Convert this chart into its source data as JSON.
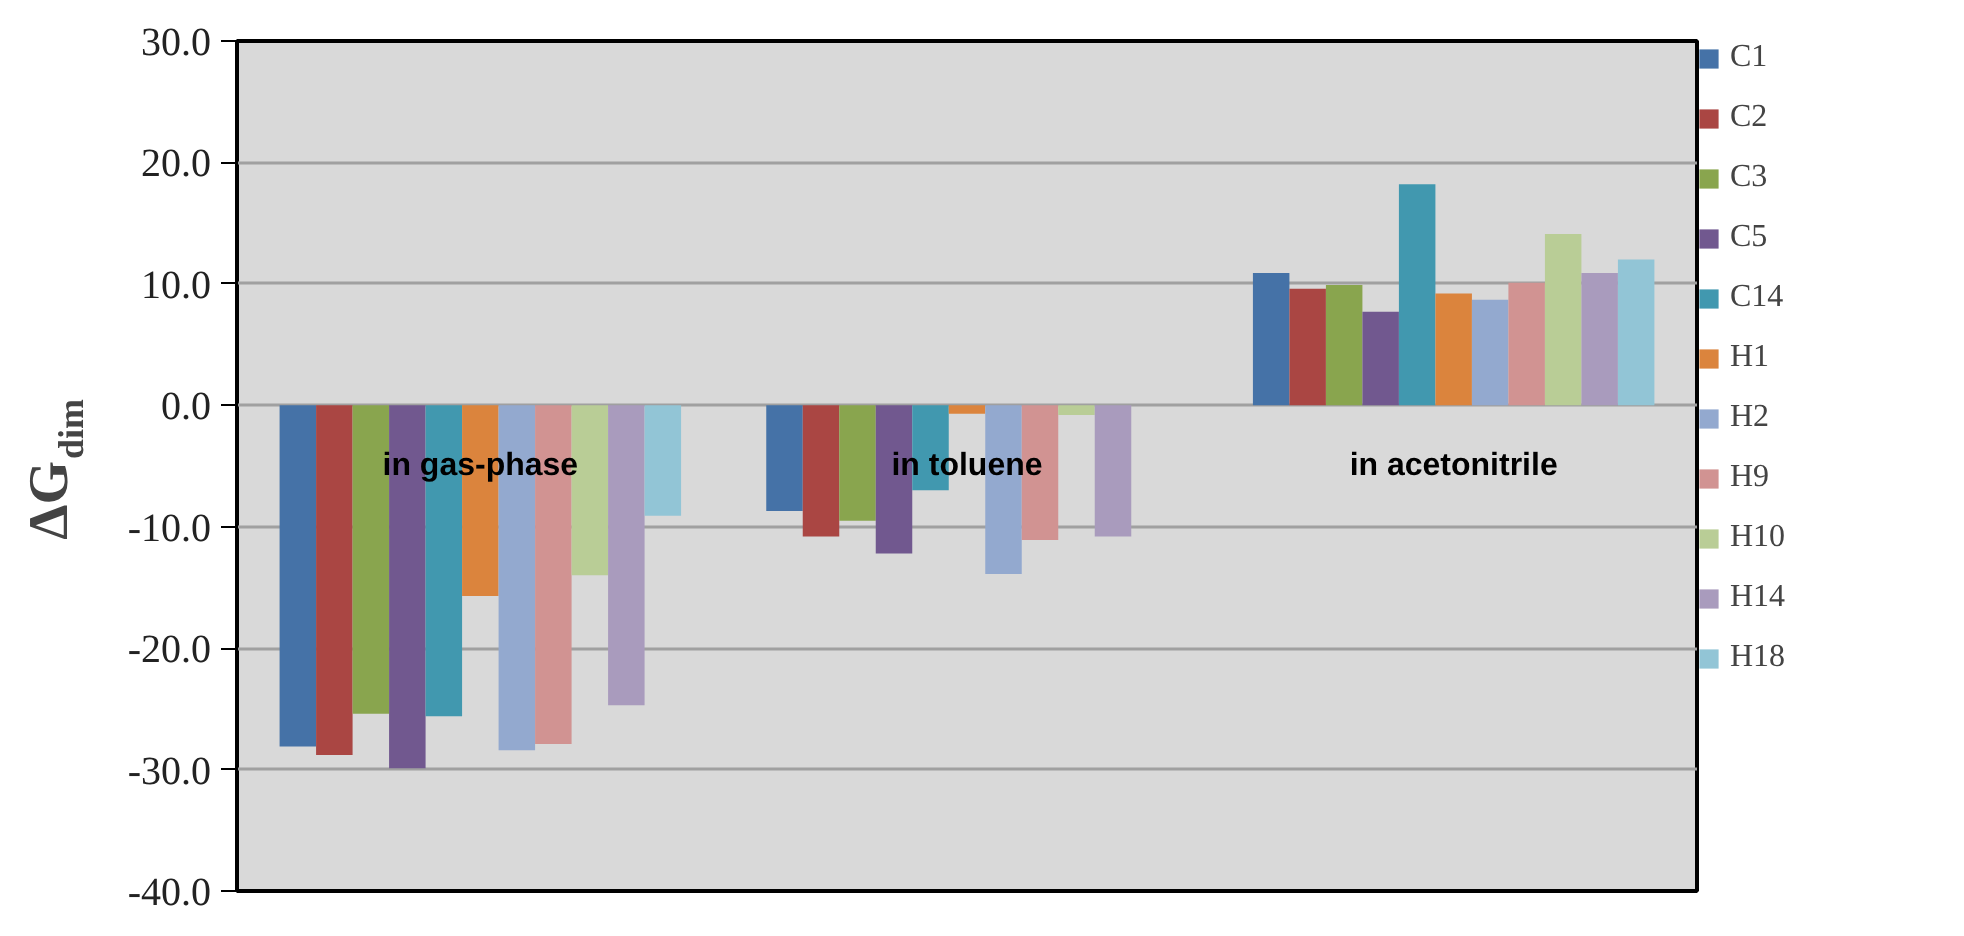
{
  "chart_data": {
    "type": "bar",
    "ylabel": "ΔG$_{dim}$",
    "categories": [
      "in gas-phase",
      "in toluene",
      "in acetonitrile"
    ],
    "series": [
      {
        "name": "C1",
        "color": "#4572a7",
        "values": [
          -28.1,
          -8.7,
          10.9
        ]
      },
      {
        "name": "C2",
        "color": "#aa4643",
        "values": [
          -28.8,
          -10.8,
          9.6
        ]
      },
      {
        "name": "C3",
        "color": "#89a54e",
        "values": [
          -25.4,
          -9.5,
          9.9
        ]
      },
      {
        "name": "C5",
        "color": "#71588f",
        "values": [
          -29.9,
          -12.2,
          7.7
        ]
      },
      {
        "name": "C14",
        "color": "#4198af",
        "values": [
          -25.6,
          -7.0,
          18.2
        ]
      },
      {
        "name": "H1",
        "color": "#db843d",
        "values": [
          -15.7,
          -0.7,
          9.2
        ]
      },
      {
        "name": "H2",
        "color": "#93a9cf",
        "values": [
          -28.4,
          -13.9,
          8.7
        ]
      },
      {
        "name": "H9",
        "color": "#d19392",
        "values": [
          -27.9,
          -11.1,
          10.1
        ]
      },
      {
        "name": "H10",
        "color": "#b9cd96",
        "values": [
          -14.0,
          -0.8,
          14.1
        ]
      },
      {
        "name": "H14",
        "color": "#a99bbd",
        "values": [
          -24.7,
          -10.8,
          10.9
        ]
      },
      {
        "name": "H18",
        "color": "#92c5d6",
        "values": [
          -9.1,
          0.0,
          12.0
        ]
      }
    ],
    "ylim": [
      -40,
      30
    ],
    "yticks": [
      {
        "value": -40,
        "label": "-40.0"
      },
      {
        "value": -30,
        "label": "-30.0"
      },
      {
        "value": -20,
        "label": "-20.0"
      },
      {
        "value": -10,
        "label": "-10.0"
      },
      {
        "value": 0,
        "label": "0.0"
      },
      {
        "value": 10,
        "label": "10.0"
      },
      {
        "value": 20,
        "label": "20.0"
      },
      {
        "value": 30,
        "label": "30.0"
      }
    ],
    "grid": "y",
    "legend": "right"
  }
}
